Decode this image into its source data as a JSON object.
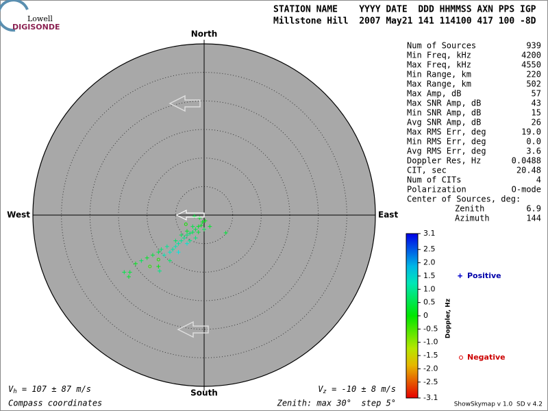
{
  "logo": {
    "top": "Lowell",
    "bottom": "DIGISONDE"
  },
  "header": {
    "line1": "STATION NAME    YYYY DATE  DDD HHMMSS AXN PPS IGP",
    "line2": "Millstone Hill  2007 May21 141 114100 417 100 -8D"
  },
  "stats": [
    {
      "label": "Num of Sources",
      "value": 939
    },
    {
      "label": "Min Freq, kHz",
      "value": 4200
    },
    {
      "label": "Max Freq, kHz",
      "value": 4550
    },
    {
      "label": "Min Range, km",
      "value": 220
    },
    {
      "label": "Max Range, km",
      "value": 502
    },
    {
      "label": "Max Amp, dB",
      "value": 57
    },
    {
      "label": "Max SNR Amp, dB",
      "value": 43
    },
    {
      "label": "Min SNR Amp, dB",
      "value": 15
    },
    {
      "label": "Avg SNR Amp, dB",
      "value": 26
    },
    {
      "label": "Max RMS Err, deg",
      "value": "19.0"
    },
    {
      "label": "Min RMS Err, deg",
      "value": "0.0"
    },
    {
      "label": "Avg RMS Err, deg",
      "value": 3.6
    },
    {
      "label": "Doppler Res, Hz",
      "value": 0.0488
    },
    {
      "label": "CIT, sec",
      "value": 20.48
    },
    {
      "label": "Num of CITs",
      "value": 4
    },
    {
      "label": "Polarization",
      "value": "O-mode"
    }
  ],
  "center": {
    "title": "Center of Sources, deg:",
    "rows": [
      {
        "label": "Zenith",
        "value": 6.9
      },
      {
        "label": "Azimuth",
        "value": 144
      }
    ]
  },
  "chart_data": {
    "type": "skymap",
    "directions": {
      "north": "North",
      "south": "South",
      "west": "West",
      "east": "East"
    },
    "rlim": [
      0,
      30
    ],
    "rticks": [
      5,
      10,
      15,
      20,
      25
    ],
    "clim": [
      -3.1,
      3.1
    ],
    "cticks": [
      3.1,
      2.5,
      {
        "value": 2,
        "label": "2.0"
      },
      1.5,
      {
        "value": 1,
        "label": "1.0"
      },
      0.5,
      0,
      -0.5,
      {
        "value": -1,
        "label": "-1.0"
      },
      -1.5,
      {
        "value": -2,
        "label": "-2.0"
      },
      -2.5,
      -3.1
    ],
    "colorbar_label": "Doppler, Hz",
    "legend": {
      "positive": "Positive",
      "negative": "Negative"
    },
    "points": [
      {
        "x": -1,
        "y": -2,
        "doppler": 0.3
      },
      {
        "x": -0.5,
        "y": -1.8,
        "doppler": 0.2
      },
      {
        "x": -1.5,
        "y": -2.5,
        "doppler": 0.5
      },
      {
        "x": -2,
        "y": -3,
        "doppler": 0.6
      },
      {
        "x": -2.5,
        "y": -3.2,
        "doppler": 0.7
      },
      {
        "x": -3,
        "y": -3.5,
        "doppler": 0.8
      },
      {
        "x": -3.5,
        "y": -4,
        "doppler": 0.9
      },
      {
        "x": -4,
        "y": -4.5,
        "doppler": 1.0
      },
      {
        "x": -4.5,
        "y": -5,
        "doppler": 1.1
      },
      {
        "x": -5,
        "y": -5.5,
        "doppler": 1.2
      },
      {
        "x": -5.5,
        "y": -6,
        "doppler": 1.1
      },
      {
        "x": -6,
        "y": -6.5,
        "doppler": 1.3
      },
      {
        "x": -0.3,
        "y": -1.2,
        "doppler": 0.2
      },
      {
        "x": 0.2,
        "y": -1,
        "doppler": 0.1
      },
      {
        "x": -1,
        "y": -3,
        "doppler": 0.4
      },
      {
        "x": -2,
        "y": -2,
        "doppler": 0.5
      },
      {
        "x": -3,
        "y": -2.8,
        "doppler": 0.3
      },
      {
        "x": -2.5,
        "y": -4.5,
        "doppler": 0.9
      },
      {
        "x": -4,
        "y": -3.5,
        "doppler": 0.6
      },
      {
        "x": -5,
        "y": -4.5,
        "doppler": 0.7
      },
      {
        "x": -6.5,
        "y": -5.5,
        "doppler": 1.0
      },
      {
        "x": -7,
        "y": -7,
        "doppler": 1.2
      },
      {
        "x": -7.5,
        "y": -6,
        "doppler": 0.8
      },
      {
        "x": -8,
        "y": -6.5,
        "doppler": 0.5
      },
      {
        "x": -9,
        "y": -7,
        "doppler": 0.4
      },
      {
        "x": -10,
        "y": -7.5,
        "doppler": 0.3
      },
      {
        "x": -11,
        "y": -8,
        "doppler": 0.6
      },
      {
        "x": -13,
        "y": -10,
        "doppler": 0.4
      },
      {
        "x": -14,
        "y": -10,
        "doppler": 0.5
      },
      {
        "x": -13.2,
        "y": -10.8,
        "doppler": 0.3
      },
      {
        "x": -12,
        "y": -8.5,
        "doppler": 0.2
      },
      {
        "x": -8,
        "y": -9,
        "doppler": 0.1
      },
      {
        "x": -6,
        "y": -8,
        "doppler": 0.7
      },
      {
        "x": 3.8,
        "y": -3.1,
        "doppler": 0.4
      },
      {
        "x": 1,
        "y": -2,
        "doppler": 0.3
      },
      {
        "x": 0,
        "y": -2.5,
        "doppler": 0.5
      },
      {
        "x": -1.5,
        "y": -4,
        "doppler": 0.8
      },
      {
        "x": -3,
        "y": -5,
        "doppler": 1.4
      },
      {
        "x": -4.5,
        "y": -6.5,
        "doppler": 1.5
      },
      {
        "x": -7.8,
        "y": -9.8,
        "doppler": 0.9
      },
      {
        "x": -9.5,
        "y": -9,
        "doppler": -0.3
      },
      {
        "x": -8,
        "y": -7.8,
        "doppler": -0.2
      },
      {
        "x": -1.7,
        "y": -0.2,
        "doppler": 0.4
      },
      {
        "x": -0.8,
        "y": -0.5,
        "doppler": 0.3
      },
      {
        "x": -3.2,
        "y": -1.6,
        "doppler": -0.1
      }
    ]
  },
  "footer": {
    "vh_symbol": "V",
    "vh_sub": "h",
    "vh_text": " = 107 ± 87 m/s",
    "vz_symbol": "V",
    "vz_sub": "z",
    "vz_text": " = -10 ± 8 m/s",
    "coords": "Compass coordinates",
    "zenith": "Zenith: max 30°  step 5°",
    "version": "ShowSkymap v 1.0  SD v 4.2"
  }
}
